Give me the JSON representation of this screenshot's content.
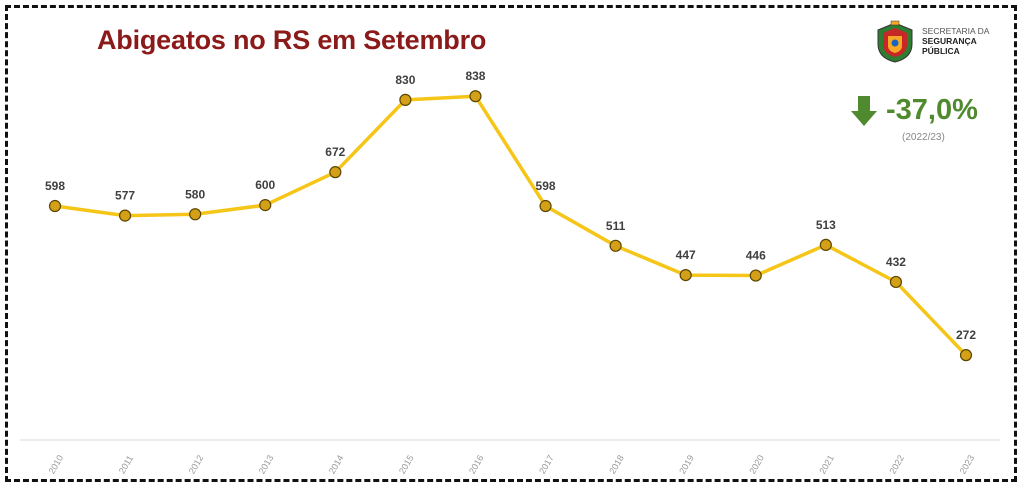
{
  "header": {
    "title": "Abigeatos no RS em Setembro",
    "logo_line1": "SECRETARIA DA",
    "logo_line2": "SEGURANÇA",
    "logo_line3": "PÚBLICA"
  },
  "summary": {
    "change_value": "-37,0%",
    "change_period": "(2022/23)",
    "arrow_icon": "arrow-down-icon",
    "change_color": "#4f8a2f"
  },
  "colors": {
    "line": "#f5c518",
    "marker_fill": "#d4a017",
    "marker_stroke": "#5a4500",
    "title": "#8b1a1a"
  },
  "chart_data": {
    "type": "line",
    "title": "Abigeatos no RS em Setembro",
    "xlabel": "",
    "ylabel": "",
    "categories": [
      "2010",
      "2011",
      "2012",
      "2013",
      "2014",
      "2015",
      "2016",
      "2017",
      "2018",
      "2019",
      "2020",
      "2021",
      "2022",
      "2023"
    ],
    "values": [
      598,
      577,
      580,
      600,
      672,
      830,
      838,
      598,
      511,
      447,
      446,
      513,
      432,
      272
    ],
    "ylim": [
      200,
      900
    ],
    "grid": false,
    "legend": "none"
  }
}
